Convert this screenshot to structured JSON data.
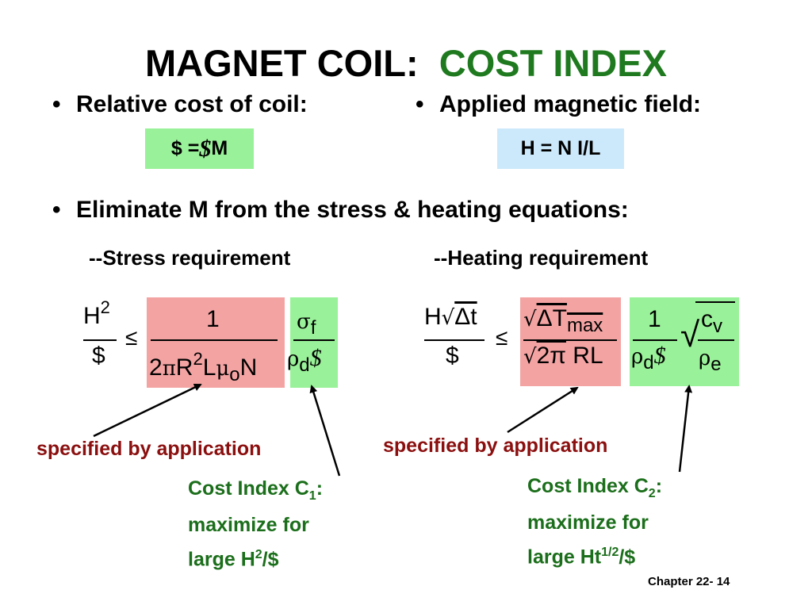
{
  "title": {
    "main": "MAGNET COIL:",
    "accent": "COST INDEX"
  },
  "bullets": {
    "relative_cost": "Relative cost of  coil:",
    "applied_field": "Applied magnetic field:",
    "eliminate": "Eliminate M from the stress & heating equations:"
  },
  "boxes": {
    "cost_eq_lhs": "$ = ",
    "cost_eq_rho": "$",
    "cost_eq_m": " M",
    "field_eq": "H = N I/L"
  },
  "requirements": {
    "stress": "--Stress requirement",
    "heating": "--Heating requirement"
  },
  "eq_stress": {
    "lhs_num": "H",
    "lhs_num_sup": "2",
    "lhs_den": "$",
    "leq": "≤",
    "app_num": "1",
    "app_den_a": "2",
    "app_den_pi": "π",
    "app_den_r": "R",
    "app_den_r_sup": "2",
    "app_den_l": "L",
    "app_den_mu": "μ",
    "app_den_mu_sub": "o",
    "app_den_n": "N",
    "mat_num": "σ",
    "mat_num_sub": "f",
    "mat_den": "ρ",
    "mat_den_sub": "d",
    "mat_den_cost": "$"
  },
  "eq_heating": {
    "lhs_num_h": "H",
    "lhs_num_root": "√",
    "lhs_num_dt": "Δt",
    "lhs_den": "$",
    "leq": "≤",
    "app_num_root": "√",
    "app_num_dt": "ΔT",
    "app_num_sub": "max",
    "app_den_root": "√",
    "app_den": "2π",
    "app_den_rl": " RL",
    "mat_num": "1",
    "mat_den": "ρ",
    "mat_den_sub": "d",
    "mat_den_cost": "$",
    "root": "√",
    "cv": "c",
    "cv_sub": "v",
    "rho_e": "ρ",
    "rho_e_sub": "e"
  },
  "labels": {
    "specified_left": "specified by application",
    "specified_right": "specified by application"
  },
  "cost_index_1": {
    "line1_a": "Cost Index C",
    "line1_sub": "1",
    "line1_b": ":",
    "line2": "maximize for",
    "line3_a": "large H",
    "line3_sup": "2",
    "line3_b": "/$"
  },
  "cost_index_2": {
    "line1_a": "Cost Index C",
    "line1_sub": "2",
    "line1_b": ":",
    "line2": "maximize for",
    "line3_a": "large Ht",
    "line3_sup": "1/2",
    "line3_b": "/$"
  },
  "footer": "Chapter 22- 14",
  "colors": {
    "accent_green": "#1f7a1f",
    "box_green": "#99f199",
    "box_blue": "#cce9fb",
    "box_pink": "#f4a3a3",
    "dark_red": "#8b0f0f",
    "ci_green": "#1b6e1b"
  }
}
